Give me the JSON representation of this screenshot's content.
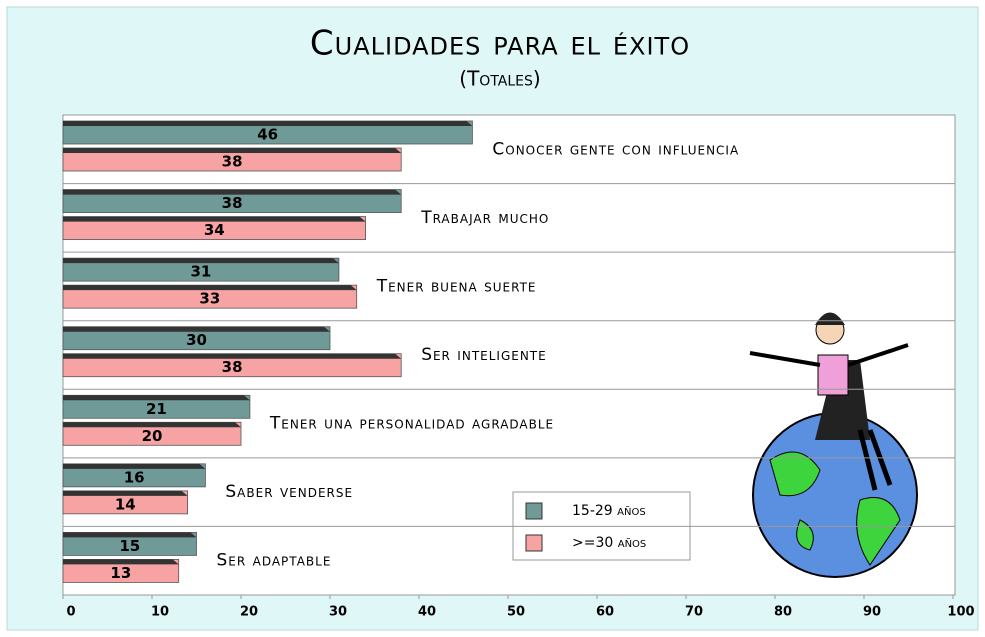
{
  "chart_data": {
    "type": "bar",
    "orientation": "horizontal",
    "title": "Cualidades para el éxito",
    "subtitle": "(Totales)",
    "categories": [
      "Conocer gente con influencia",
      "Trabajar mucho",
      "Tener buena suerte",
      "Ser inteligente",
      "Tener una personalidad agradable",
      "Saber venderse",
      "Ser adaptable"
    ],
    "series": [
      {
        "name": "15-29 años",
        "color": "#6f9a98",
        "values": [
          46,
          38,
          31,
          30,
          21,
          16,
          15
        ]
      },
      {
        "name": ">=30 años",
        "color": "#f7a3a3",
        "values": [
          38,
          34,
          33,
          38,
          20,
          14,
          13
        ]
      }
    ],
    "xlim": [
      0,
      100
    ],
    "xticks": [
      0,
      10,
      20,
      30,
      40,
      50,
      60,
      70,
      80,
      90,
      100
    ],
    "grid": true
  }
}
